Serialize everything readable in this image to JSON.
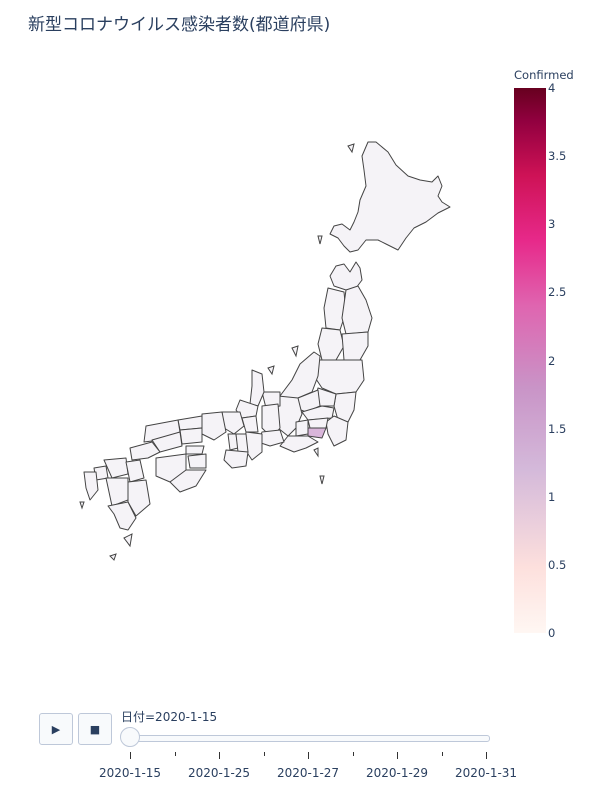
{
  "title": "新型コロナウイルス感染者数(都道府県)",
  "colorbar": {
    "title": "Confirmed",
    "range": [
      0,
      4
    ],
    "ticks": [
      "4",
      "3.5",
      "3",
      "2.5",
      "2",
      "1.5",
      "1",
      "0.5",
      "0"
    ],
    "colors": [
      "#fff7f3",
      "#fde0dd",
      "#d4b9da",
      "#c994c7",
      "#df65b0",
      "#e7298a",
      "#ce1256",
      "#91003f",
      "#67001f"
    ]
  },
  "map": {
    "base_fill": "#f5f3f7",
    "border_color": "#444444",
    "highlight_fill": "#d9b6da"
  },
  "animation": {
    "play_icon": "play-icon",
    "stop_icon": "stop-icon",
    "current_label": "日付=2020-1-15",
    "tick_labels": [
      "2020-1-15",
      "2020-1-25",
      "2020-1-27",
      "2020-1-29",
      "2020-1-31"
    ]
  }
}
